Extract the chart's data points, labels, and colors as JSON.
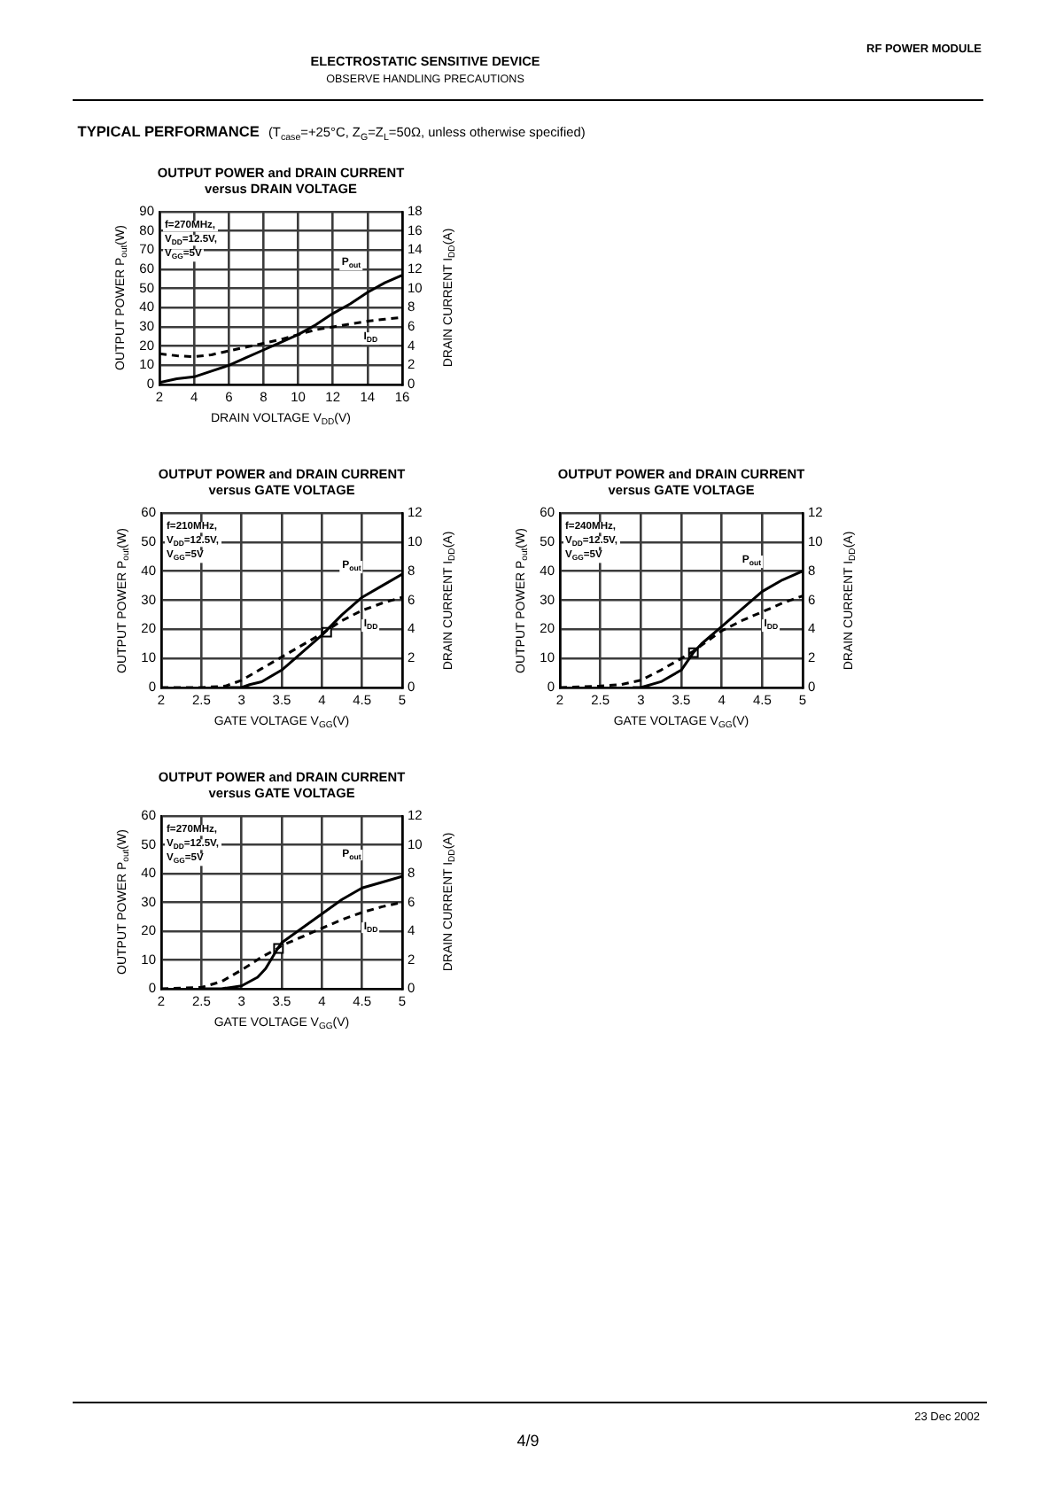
{
  "chart_data": [
    {
      "type": "other",
      "title": "TYPICAL PERFORMANCE",
      "subtitle": "(T$_{case}$=+25°C, Z$_{G}$=Z$_{L}$=50Ω, unless otherwise specified)",
      "annotations": [
        "ELECTROSTATIC SENSITIVE DEVICE",
        "OBSERVE HANDLING PRECAUTIONS",
        "RF POWER MODULE"
      ]
    },
    {
      "type": "line",
      "title": "OUTPUT POWER and DRAIN CURRENT\nversus DRAIN VOLTAGE",
      "xlabel": "DRAIN VOLTAGE V$_{DD}$(V)",
      "ylabel": "OUTPUT POWER P$_{out}$(W)",
      "y2label": "DRAIN CURRENT I$_{DD}$(A)",
      "annotations": [
        "f=270MHz,",
        "V$_{DD}$=12.5V,",
        "V$_{GG}$=5V"
      ],
      "xlim": [
        2,
        16
      ],
      "xticks": [
        2,
        4,
        6,
        8,
        10,
        12,
        14,
        16
      ],
      "ylim": [
        0,
        90
      ],
      "yticks": [
        0,
        10,
        20,
        30,
        40,
        50,
        60,
        70,
        80,
        90
      ],
      "y2lim": [
        0,
        18
      ],
      "y2ticks": [
        0,
        2,
        4,
        6,
        8,
        10,
        12,
        14,
        16,
        18
      ],
      "grid": true,
      "legend": false,
      "series": [
        {
          "name": "P$_{out}$",
          "color": "#000000",
          "line_style": "solid",
          "x": [
            2,
            3,
            4,
            5,
            6,
            7,
            8,
            9,
            10,
            11,
            12,
            13,
            14,
            15,
            16
          ],
          "values": [
            1,
            3,
            4,
            7,
            10,
            14,
            18,
            22,
            26,
            31,
            37,
            42,
            48,
            53,
            57
          ]
        },
        {
          "name": "I$_{DD}$",
          "color": "#000000",
          "line_style": "dashed",
          "axis": "y2",
          "x": [
            2,
            3,
            4,
            5,
            6,
            7,
            8,
            9,
            10,
            11,
            12,
            13,
            14,
            15,
            16
          ],
          "values": [
            3.2,
            3.0,
            2.9,
            3.1,
            3.5,
            3.9,
            4.3,
            4.7,
            5.2,
            5.7,
            6.0,
            6.3,
            6.6,
            6.8,
            7.0
          ]
        }
      ]
    },
    {
      "type": "line",
      "title": "OUTPUT POWER and DRAIN CURRENT\nversus GATE VOLTAGE",
      "xlabel": "GATE VOLTAGE V$_{GG}$(V)",
      "ylabel": "OUTPUT POWER P$_{out}$(W)",
      "y2label": "DRAIN CURRENT I$_{DD}$(A)",
      "annotations": [
        "f=210MHz,",
        "V$_{DD}$=12.5V,",
        "V$_{GG}$=5V"
      ],
      "xlim": [
        2,
        5
      ],
      "xticks": [
        2,
        2.5,
        3,
        3.5,
        4,
        4.5,
        5
      ],
      "ylim": [
        0,
        60
      ],
      "yticks": [
        0,
        10,
        20,
        30,
        40,
        50,
        60
      ],
      "y2lim": [
        0,
        12
      ],
      "y2ticks": [
        0,
        2,
        4,
        6,
        8,
        10,
        12
      ],
      "grid": true,
      "legend": false,
      "series": [
        {
          "name": "P$_{out}$",
          "color": "#000000",
          "line_style": "solid",
          "x": [
            2.8,
            2.9,
            3.0,
            3.1,
            3.25,
            3.5,
            3.75,
            4.0,
            4.25,
            4.5,
            4.75,
            5.0
          ],
          "values": [
            0,
            0,
            0,
            1,
            2,
            6,
            12,
            18,
            25,
            31,
            35,
            39
          ]
        },
        {
          "name": "I$_{DD}$",
          "color": "#000000",
          "line_style": "dashed",
          "axis": "y2",
          "x": [
            2.0,
            2.5,
            2.8,
            3.0,
            3.25,
            3.5,
            3.75,
            4.0,
            4.25,
            4.5,
            4.75,
            5.0
          ],
          "values": [
            0,
            0,
            0.1,
            0.5,
            1.3,
            2.1,
            2.9,
            3.7,
            4.6,
            5.3,
            5.8,
            6.2
          ]
        },
        {
          "type": "scatter",
          "marker": "square",
          "color": "#000000",
          "x": [
            4.06
          ],
          "values": [
            19
          ]
        }
      ]
    },
    {
      "type": "line",
      "title": "OUTPUT POWER and DRAIN CURRENT\nversus GATE VOLTAGE",
      "xlabel": "GATE VOLTAGE V$_{GG}$(V)",
      "ylabel": "OUTPUT POWER P$_{out}$(W)",
      "y2label": "DRAIN CURRENT I$_{DD}$(A)",
      "annotations": [
        "f=240MHz,",
        "V$_{DD}$=12.5V,",
        "V$_{GG}$=5V"
      ],
      "xlim": [
        2,
        5
      ],
      "xticks": [
        2,
        2.5,
        3,
        3.5,
        4,
        4.5,
        5
      ],
      "ylim": [
        0,
        60
      ],
      "yticks": [
        0,
        10,
        20,
        30,
        40,
        50,
        60
      ],
      "y2lim": [
        0,
        12
      ],
      "y2ticks": [
        0,
        2,
        4,
        6,
        8,
        10,
        12
      ],
      "grid": true,
      "legend": false,
      "series": [
        {
          "name": "P$_{out}$",
          "color": "#000000",
          "line_style": "solid",
          "x": [
            2.9,
            3.0,
            3.25,
            3.5,
            3.65,
            3.75,
            4.0,
            4.25,
            4.5,
            4.75,
            5.0
          ],
          "values": [
            0,
            0,
            2,
            6,
            12,
            15,
            21,
            27,
            33,
            37,
            40
          ]
        },
        {
          "name": "I$_{DD}$",
          "color": "#000000",
          "line_style": "dashed",
          "axis": "y2",
          "x": [
            2.0,
            2.5,
            2.75,
            3.0,
            3.25,
            3.5,
            3.65,
            3.75,
            4.0,
            4.25,
            4.5,
            4.75,
            5.0
          ],
          "values": [
            0,
            0.1,
            0.2,
            0.5,
            1.2,
            2.0,
            2.5,
            2.9,
            3.9,
            4.6,
            5.2,
            5.8,
            6.3
          ]
        },
        {
          "type": "scatter",
          "marker": "square",
          "color": "#000000",
          "x": [
            3.65
          ],
          "values": [
            12
          ]
        }
      ]
    },
    {
      "type": "line",
      "title": "OUTPUT POWER and DRAIN CURRENT\nversus GATE VOLTAGE",
      "xlabel": "GATE VOLTAGE V$_{GG}$(V)",
      "ylabel": "OUTPUT POWER P$_{out}$(W)",
      "y2label": "DRAIN CURRENT I$_{DD}$(A)",
      "annotations": [
        "f=270MHz,",
        "V$_{DD}$=12.5V,",
        "V$_{GG}$=5V"
      ],
      "xlim": [
        2,
        5
      ],
      "xticks": [
        2,
        2.5,
        3,
        3.5,
        4,
        4.5,
        5
      ],
      "ylim": [
        0,
        60
      ],
      "yticks": [
        0,
        10,
        20,
        30,
        40,
        50,
        60
      ],
      "y2lim": [
        0,
        12
      ],
      "y2ticks": [
        0,
        2,
        4,
        6,
        8,
        10,
        12
      ],
      "grid": true,
      "legend": false,
      "series": [
        {
          "name": "P$_{out}$",
          "color": "#000000",
          "line_style": "solid",
          "x": [
            2.5,
            2.75,
            3.0,
            3.2,
            3.3,
            3.45,
            3.5,
            3.75,
            4.0,
            4.25,
            4.5,
            4.75,
            5.0
          ],
          "values": [
            0,
            0,
            1,
            4,
            7,
            14,
            16,
            21,
            26,
            31,
            35,
            37,
            39
          ]
        },
        {
          "name": "I$_{DD}$",
          "color": "#000000",
          "line_style": "dashed",
          "axis": "y2",
          "x": [
            2.0,
            2.5,
            2.75,
            3.0,
            3.25,
            3.45,
            3.5,
            3.75,
            4.0,
            4.25,
            4.5,
            4.75,
            5.0
          ],
          "values": [
            0,
            0.1,
            0.5,
            1.3,
            2.2,
            2.8,
            3.0,
            3.6,
            4.2,
            4.8,
            5.3,
            5.7,
            6.0
          ]
        },
        {
          "type": "scatter",
          "marker": "square",
          "color": "#000000",
          "x": [
            3.46
          ],
          "values": [
            14
          ]
        }
      ]
    },
    {
      "type": "other",
      "annotations": [
        "23 Dec 2002",
        "4/9"
      ]
    }
  ]
}
